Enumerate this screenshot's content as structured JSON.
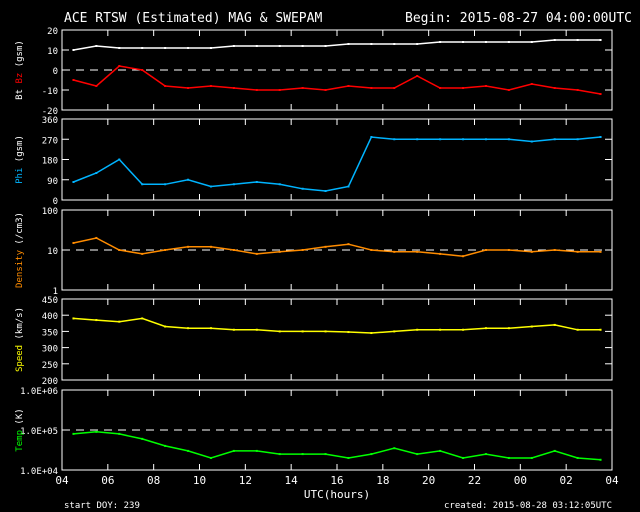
{
  "chart_data": {
    "type": "line",
    "title": "ACE RTSW (Estimated) MAG & SWEPAM",
    "begin": "Begin: 2015-08-27 04:00:00UTC",
    "xlabel": "UTC(hours)",
    "x_ticks": [
      "04",
      "06",
      "08",
      "10",
      "12",
      "14",
      "16",
      "18",
      "20",
      "22",
      "00",
      "02",
      "04"
    ],
    "x_hours": [
      0,
      1,
      2,
      3,
      4,
      5,
      6,
      7,
      8,
      9,
      10,
      11,
      12,
      13,
      14,
      15,
      16,
      17,
      18,
      19,
      20,
      21,
      22,
      23
    ],
    "footer_left": "start DOY: 239",
    "footer_right": "created: 2015-08-28 03:12:05UTC",
    "panels": [
      {
        "ylabel_parts": [
          {
            "text": "Bt ",
            "color": "#ffffff"
          },
          {
            "text": "Bz",
            "color": "#ff0000"
          },
          {
            "text": " (gsm)",
            "color": "#ffffff"
          }
        ],
        "scale": "linear",
        "ylim": [
          -20,
          20
        ],
        "ticks": [
          "20",
          "10",
          "0",
          "-10",
          "-20"
        ],
        "tick_values": [
          20,
          10,
          0,
          -10,
          -20
        ],
        "ref": 0,
        "series": [
          {
            "name": "Bt",
            "color": "#ffffff",
            "values": [
              10,
              12,
              11,
              11,
              11,
              11,
              11,
              12,
              12,
              12,
              12,
              12,
              13,
              13,
              13,
              13,
              14,
              14,
              14,
              14,
              14,
              15,
              15,
              15
            ]
          },
          {
            "name": "Bz",
            "color": "#ff0000",
            "values": [
              -5,
              -8,
              2,
              0,
              -8,
              -9,
              -8,
              -9,
              -10,
              -10,
              -9,
              -10,
              -8,
              -9,
              -9,
              -3,
              -9,
              -9,
              -8,
              -10,
              -7,
              -9,
              -10,
              -12
            ]
          }
        ]
      },
      {
        "ylabel_parts": [
          {
            "text": "Phi",
            "color": "#00b4ff"
          },
          {
            "text": " (gsm)",
            "color": "#ffffff"
          }
        ],
        "scale": "linear",
        "ylim": [
          0,
          360
        ],
        "ticks": [
          "360",
          "270",
          "180",
          "90",
          "0"
        ],
        "tick_values": [
          360,
          270,
          180,
          90,
          0
        ],
        "ref": null,
        "series": [
          {
            "name": "Phi",
            "color": "#00b4ff",
            "values": [
              80,
              120,
              180,
              70,
              70,
              90,
              60,
              70,
              80,
              70,
              50,
              40,
              60,
              280,
              270,
              270,
              270,
              270,
              270,
              270,
              260,
              270,
              270,
              280
            ]
          }
        ]
      },
      {
        "ylabel_parts": [
          {
            "text": "Density",
            "color": "#ff8c00"
          },
          {
            "text": " (/cm3)",
            "color": "#ffffff"
          }
        ],
        "scale": "log",
        "ylim": [
          1,
          100
        ],
        "ticks": [
          "100",
          "10",
          "1"
        ],
        "tick_values": [
          100,
          10,
          1
        ],
        "ref": 10,
        "series": [
          {
            "name": "Density",
            "color": "#ff8c00",
            "values": [
              15,
              20,
              10,
              8,
              10,
              12,
              12,
              10,
              8,
              9,
              10,
              12,
              14,
              10,
              9,
              9,
              8,
              7,
              10,
              10,
              9,
              10,
              9,
              9
            ]
          }
        ]
      },
      {
        "ylabel_parts": [
          {
            "text": "Speed",
            "color": "#ffff00"
          },
          {
            "text": " (km/s)",
            "color": "#ffffff"
          }
        ],
        "scale": "linear",
        "ylim": [
          200,
          450
        ],
        "ticks": [
          "450",
          "400",
          "350",
          "300",
          "250",
          "200"
        ],
        "tick_values": [
          450,
          400,
          350,
          300,
          250,
          200
        ],
        "ref": null,
        "series": [
          {
            "name": "Speed",
            "color": "#ffff00",
            "values": [
              390,
              385,
              380,
              390,
              365,
              360,
              360,
              355,
              355,
              350,
              350,
              350,
              348,
              345,
              350,
              355,
              355,
              355,
              360,
              360,
              365,
              370,
              355,
              355
            ]
          }
        ]
      },
      {
        "ylabel_parts": [
          {
            "text": "Temp",
            "color": "#00ff00"
          },
          {
            "text": " (K)",
            "color": "#ffffff"
          }
        ],
        "scale": "log",
        "ylim": [
          10000,
          1000000
        ],
        "ticks": [
          "1.0E+06",
          "1.0E+05",
          "1.0E+04"
        ],
        "tick_values": [
          1000000,
          100000,
          10000
        ],
        "ref": 100000,
        "series": [
          {
            "name": "Temp",
            "color": "#00ff00",
            "values": [
              80000,
              90000,
              80000,
              60000,
              40000,
              30000,
              20000,
              30000,
              30000,
              25000,
              25000,
              25000,
              20000,
              25000,
              35000,
              25000,
              30000,
              20000,
              25000,
              20000,
              20000,
              30000,
              20000,
              18000
            ]
          }
        ]
      }
    ]
  }
}
